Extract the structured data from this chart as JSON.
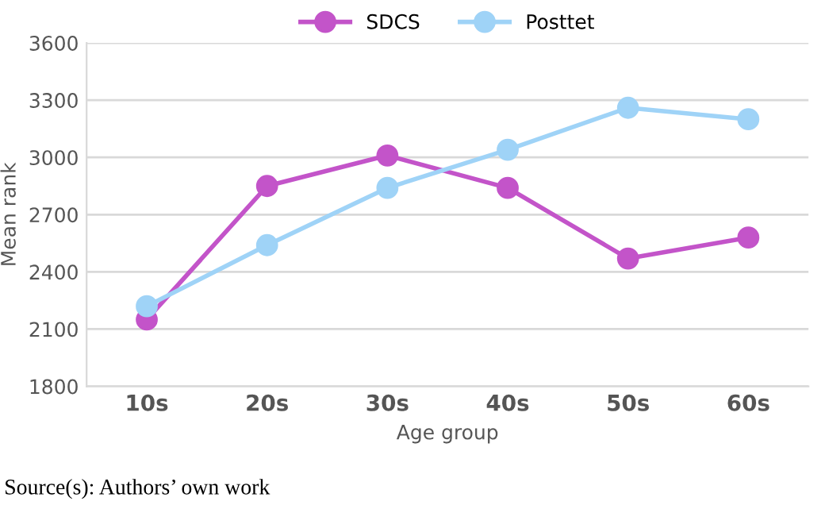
{
  "chart_data": {
    "type": "line",
    "xlabel": "Age group",
    "ylabel": "Mean rank",
    "categories": [
      "10s",
      "20s",
      "30s",
      "40s",
      "50s",
      "60s"
    ],
    "series": [
      {
        "name": "SDCS",
        "color": "#c354c9",
        "values": [
          2150,
          2850,
          3010,
          2840,
          2470,
          2580
        ]
      },
      {
        "name": "Posttet",
        "color": "#9fd3f7",
        "values": [
          2220,
          2540,
          2840,
          3040,
          3260,
          3200
        ]
      }
    ],
    "ylim": [
      1800,
      3600
    ],
    "yticks": [
      1800,
      2100,
      2400,
      2700,
      3000,
      3300,
      3600
    ],
    "grid": "y",
    "legend": "top",
    "marker": "circle",
    "line_style": "solid",
    "annotations": [
      "Source(s): Authors’ own work"
    ]
  }
}
